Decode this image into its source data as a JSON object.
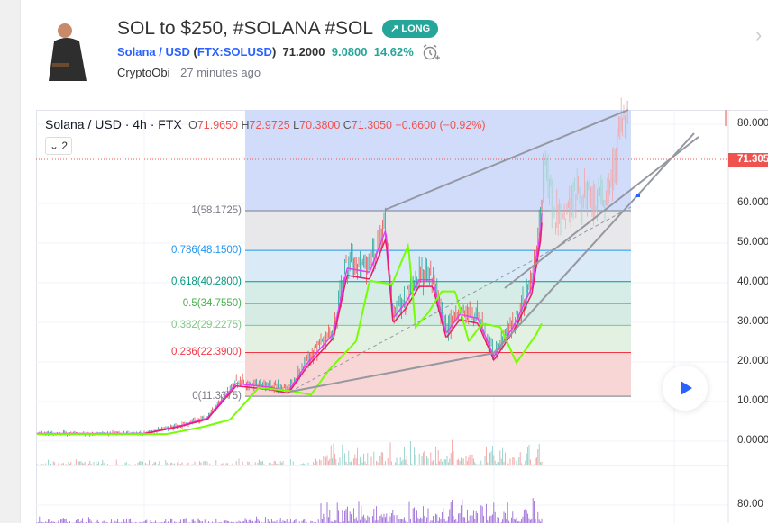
{
  "idea": {
    "title": "SOL to $250, #SOLANA #SOL",
    "badge": "LONG",
    "badge_icon": "arrow-up-right-icon",
    "symbol_name": "Solana / USD",
    "symbol_code": "FTX:SOLUSD",
    "price": "71.2000",
    "change": "9.0800",
    "change_pct": "14.62%",
    "author": "CryptoObi",
    "time_ago": "27 minutes ago"
  },
  "chart": {
    "legend_symbol": "Solana / USD · 4h · FTX",
    "open": "71.9650",
    "high": "72.9725",
    "low": "70.3800",
    "close": "71.3050",
    "change": "−0.6600 (−0.92%)",
    "indicator_count": "2",
    "last_price_tag": "71.305",
    "price_axis": [
      "80.000",
      "60.000",
      "50.000",
      "40.000",
      "30.000",
      "20.000",
      "10.000",
      "0.0000"
    ],
    "lower_axis": [
      "80.00"
    ],
    "fib_levels": [
      {
        "label": "1(58.1725)",
        "value": 58.1725,
        "color": "#787b86"
      },
      {
        "label": "0.786(48.1500)",
        "value": 48.15,
        "color": "#2196f3"
      },
      {
        "label": "0.618(40.2800)",
        "value": 40.28,
        "color": "#089981"
      },
      {
        "label": "0.5(34.7550)",
        "value": 34.755,
        "color": "#4caf50"
      },
      {
        "label": "0.382(29.2275)",
        "value": 29.2275,
        "color": "#81c784"
      },
      {
        "label": "0.236(22.3900)",
        "value": 22.39,
        "color": "#f23645"
      },
      {
        "label": "0(11.3375)",
        "value": 11.3375,
        "color": "#787b86"
      }
    ],
    "colors": {
      "up": "#26a69a",
      "down": "#ef5350"
    }
  }
}
